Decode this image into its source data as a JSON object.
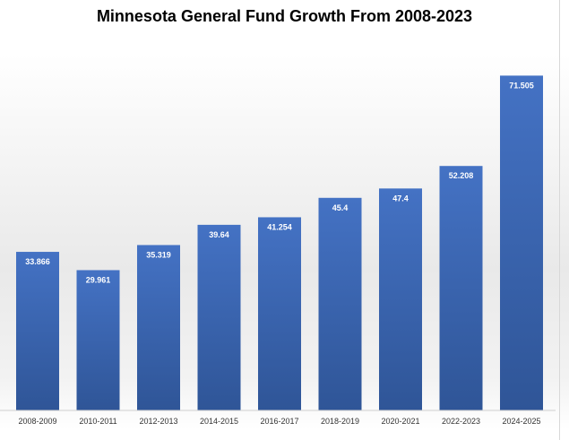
{
  "chart_data": {
    "type": "bar",
    "title": "Minnesota General Fund Growth From 2008-2023",
    "categories": [
      "2008-2009",
      "2010-2011",
      "2012-2013",
      "2014-2015",
      "2016-2017",
      "2018-2019",
      "2020-2021",
      "2022-2023",
      "2024-2025"
    ],
    "values": [
      33.866,
      29.961,
      35.319,
      39.64,
      41.254,
      45.4,
      47.4,
      52.208,
      71.505
    ],
    "value_labels": [
      "33.866",
      "29.961",
      "35.319",
      "39.64",
      "41.254",
      "45.4",
      "47.4",
      "52.208",
      "71.505"
    ],
    "ylim": [
      0,
      80
    ],
    "grid": false,
    "bar_color_top": "#4472c4",
    "bar_color_bottom": "#2f5597"
  }
}
